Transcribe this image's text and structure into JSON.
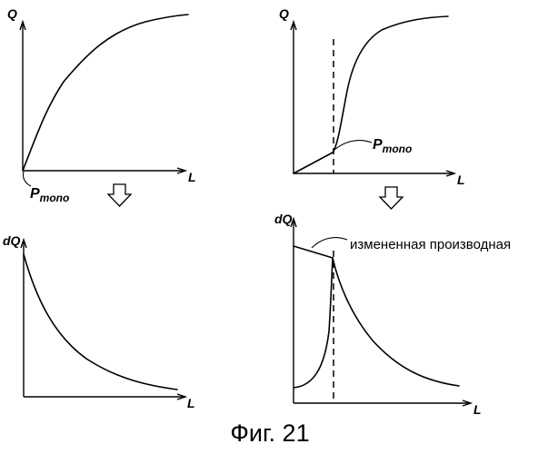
{
  "panels": {
    "top_left": {
      "y_label": "Q",
      "x_label": "L",
      "point_label_main": "P",
      "point_label_sub": "mono"
    },
    "top_right": {
      "y_label": "Q",
      "x_label": "L",
      "point_label_main": "P",
      "point_label_sub": "mono"
    },
    "bottom_left": {
      "y_label": "dQ",
      "x_label": "L"
    },
    "bottom_right": {
      "y_label": "dQ",
      "x_label": "L",
      "annotation": "измененная производная"
    }
  },
  "caption": "Фиг. 21"
}
